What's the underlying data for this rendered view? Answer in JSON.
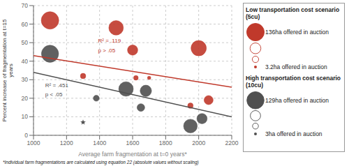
{
  "chart_data": {
    "type": "scatter",
    "xlabel": "Average farm fragmentation at t=0 years*",
    "ylabel": "Percent increase of fragmentation at t=15\nyears",
    "footnote": "*Individual farm fragmentations are calculated using equation 22 (absolute values without scaling)",
    "xlim": [
      1000,
      2200
    ],
    "ylim": [
      0,
      70
    ],
    "xticks": [
      1000,
      1200,
      1400,
      1600,
      1800,
      2000,
      2200
    ],
    "yticks": [
      0,
      10,
      20,
      30,
      40,
      50,
      60,
      70
    ],
    "grid": true,
    "series": [
      {
        "name": "Low transportation cost scenario (5cu)",
        "type": "scatter",
        "color": "#c0392b",
        "x": [
          1100,
          1300,
          1500,
          1600,
          1620,
          1700,
          1950,
          2000,
          2060
        ],
        "values": [
          62,
          32,
          58,
          46,
          31,
          31,
          16,
          47,
          19
        ],
        "size": [
          260,
          25,
          180,
          90,
          18,
          10,
          25,
          200,
          70
        ],
        "size_legend": {
          "sizes": [
            260,
            100,
            35,
            4
          ],
          "labels": [
            "136ha offered in auction",
            null,
            null,
            "3.2ha offered in auction"
          ]
        }
      },
      {
        "name": "High transportation cost scenario (10cu)",
        "type": "scatter",
        "color": "#505050",
        "x": [
          1100,
          1300,
          1380,
          1560,
          1650,
          1680,
          1950,
          2020
        ],
        "values": [
          44,
          7,
          20,
          25,
          15,
          24,
          5,
          9
        ],
        "size": [
          250,
          4,
          30,
          180,
          50,
          110,
          160,
          90
        ],
        "size_legend": {
          "sizes": [
            250,
            90,
            30,
            4
          ],
          "labels": [
            "129ha offered in auction",
            null,
            null,
            "3ha offered in auction"
          ]
        }
      },
      {
        "type": "line",
        "color": "#c0392b",
        "x": [
          1000,
          2200
        ],
        "values": [
          43,
          26
        ]
      },
      {
        "type": "line",
        "color": "#505050",
        "x": [
          1000,
          2200
        ],
        "values": [
          34,
          10
        ]
      }
    ],
    "annotations": [
      {
        "text": "R² = .119",
        "x": 1370,
        "y": 51,
        "color": "#c0392b"
      },
      {
        "text": "p > .05",
        "x": 1370,
        "y": 46,
        "color": "#c0392b"
      },
      {
        "text": "R² = .451",
        "x": 1050,
        "y": 27,
        "color": "#505050"
      },
      {
        "text": "p < .05",
        "x": 1050,
        "y": 22,
        "color": "#505050"
      }
    ]
  }
}
